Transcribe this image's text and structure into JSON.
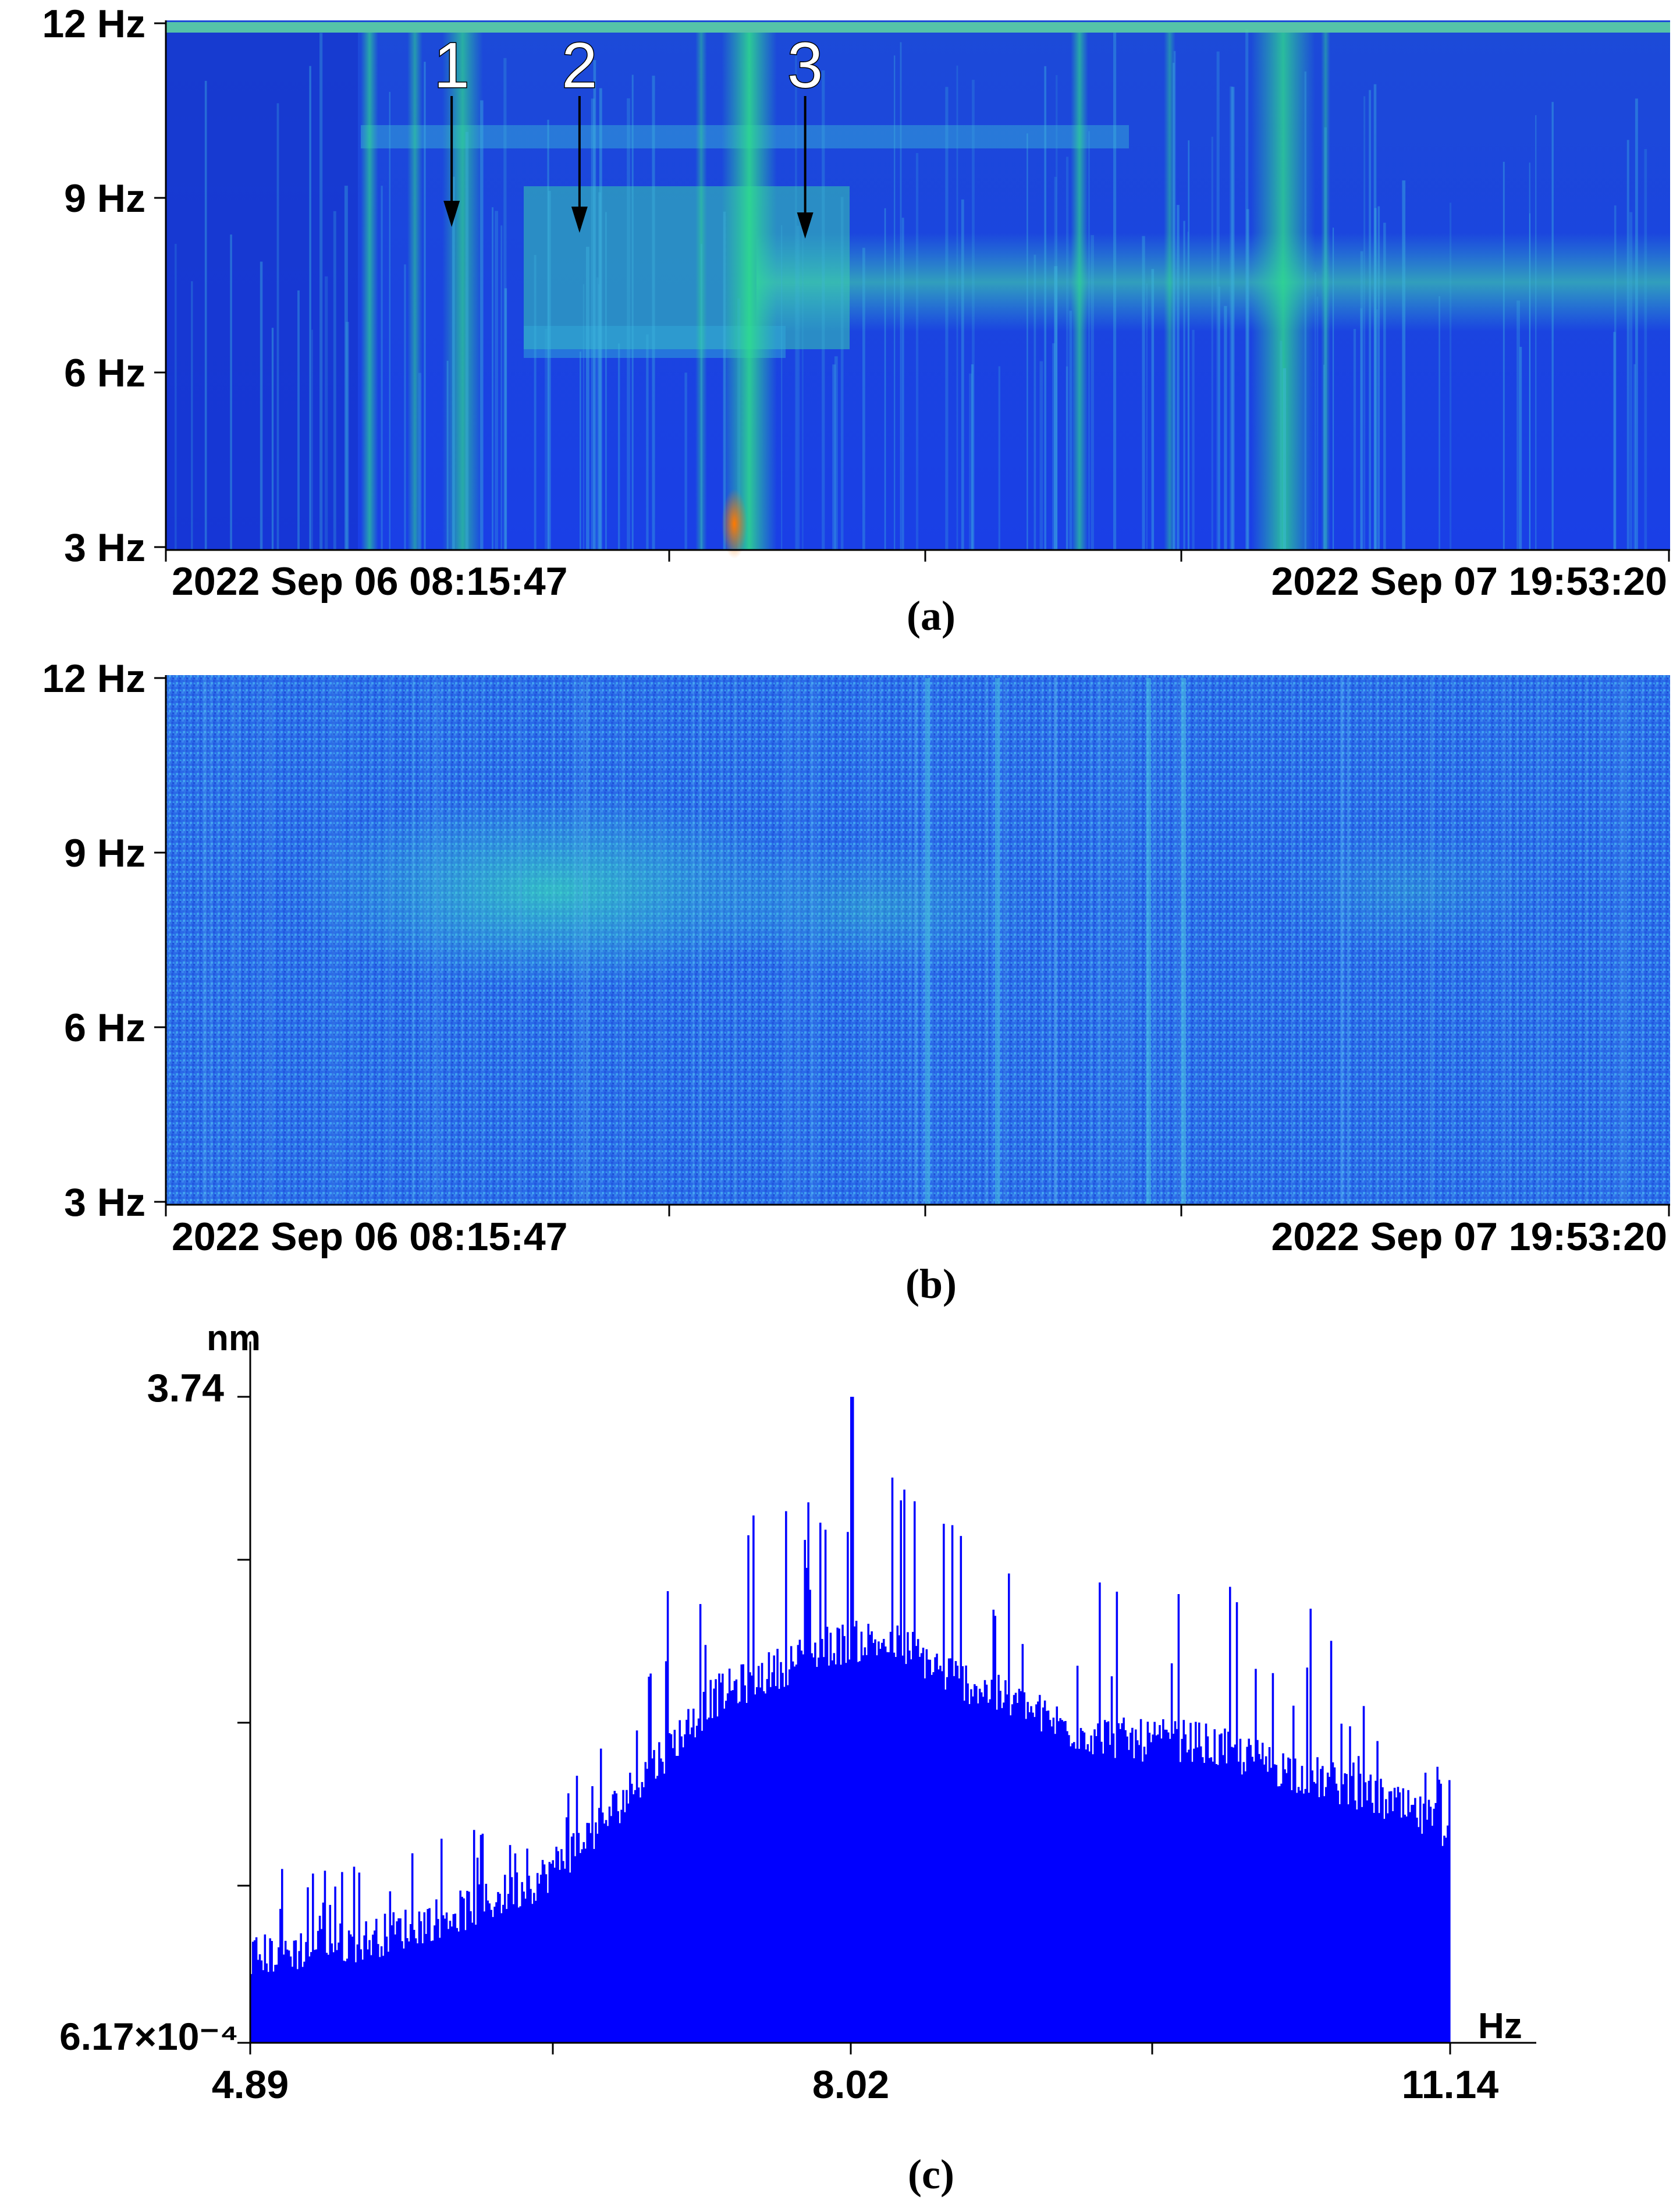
{
  "chart_data": [
    {
      "type": "heatmap",
      "panel_label": "(a)",
      "y_tick_labels": [
        "12 Hz",
        "9 Hz",
        "6 Hz",
        "3 Hz"
      ],
      "y_ticks": [
        12,
        9,
        6,
        3
      ],
      "ylim": [
        3,
        12
      ],
      "x_start_label": "2022 Sep 06 08:15:47",
      "x_end_label": "2022 Sep 07 19:53:20",
      "markers": [
        {
          "label": "1",
          "time_frac": 0.19,
          "freq": 8.5
        },
        {
          "label": "2",
          "time_frac": 0.275,
          "freq": 8.4
        },
        {
          "label": "3",
          "time_frac": 0.425,
          "freq": 8.3
        }
      ],
      "colors": {
        "background": "#1a3fe0",
        "high": "#00e08a",
        "peak": "#ff6a00"
      }
    },
    {
      "type": "heatmap",
      "panel_label": "(b)",
      "y_tick_labels": [
        "12 Hz",
        "9 Hz",
        "6 Hz",
        "3 Hz"
      ],
      "y_ticks": [
        12,
        9,
        6,
        3
      ],
      "ylim": [
        3,
        12
      ],
      "x_start_label": "2022 Sep 06 08:15:47",
      "x_end_label": "2022 Sep 07 19:53:20",
      "colors": {
        "background": "#2a6ae8",
        "high": "#2ee0c8"
      }
    },
    {
      "type": "bar",
      "panel_label": "(c)",
      "ylabel": "nm",
      "xlabel": "Hz",
      "y_max_label": "3.74",
      "y_min_label": "6.17×10⁻⁴",
      "x_tick_labels": [
        "4.89",
        "8.02",
        "11.14"
      ],
      "xlim": [
        4.89,
        11.14
      ],
      "ylim": [
        0.000617,
        3.74
      ],
      "envelope": {
        "x": [
          4.89,
          5.2,
          5.5,
          5.8,
          6.1,
          6.4,
          6.7,
          6.9,
          7.1,
          7.3,
          7.5,
          7.7,
          7.9,
          8.1,
          8.3,
          8.5,
          8.7,
          8.9,
          9.2,
          9.5,
          9.8,
          10.1,
          10.4,
          10.7,
          11.0,
          11.14
        ],
        "y": [
          0.5,
          0.55,
          0.6,
          0.7,
          0.8,
          0.95,
          1.25,
          1.5,
          1.75,
          2.0,
          2.1,
          2.2,
          2.3,
          2.33,
          2.3,
          2.15,
          2.05,
          1.95,
          1.8,
          1.75,
          1.75,
          1.65,
          1.55,
          1.45,
          1.3,
          1.25
        ]
      },
      "peak_value": 3.74,
      "peak_x": 8.02,
      "color": "#0000ff"
    }
  ]
}
